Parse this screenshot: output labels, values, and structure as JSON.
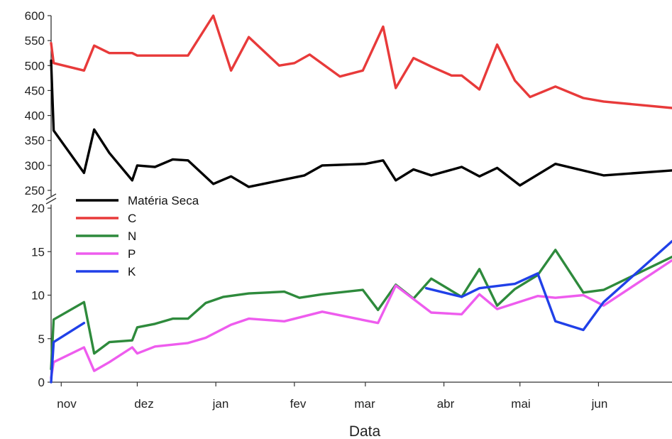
{
  "chart_data": {
    "type": "line",
    "title": "",
    "xlabel": "Data",
    "ylabel": "",
    "x_ticks": [
      "nov",
      "dez",
      "jan",
      "fev",
      "mar",
      "abr",
      "mai",
      "jun"
    ],
    "upper_panel": {
      "ylim": [
        250,
        600
      ],
      "y_ticks": [
        "600",
        "550",
        "500",
        "450",
        "400",
        "350",
        "300",
        "250"
      ]
    },
    "lower_panel": {
      "ylim": [
        0,
        20
      ],
      "y_ticks": [
        "20",
        "15",
        "10",
        "5",
        "0"
      ]
    },
    "axis_break": true,
    "grid": false,
    "legend_position": "top-left",
    "series": [
      {
        "name": "Matéria Seca",
        "color": "#000000",
        "panel": "upper",
        "x": [
          "2012-10-28",
          "2012-10-29",
          "2012-11-10",
          "2012-11-14",
          "2012-11-20",
          "2012-11-29",
          "2012-12-01",
          "2012-12-08",
          "2012-12-15",
          "2012-12-21",
          "2012-12-31",
          "2013-01-07",
          "2013-01-14",
          "2013-02-05",
          "2013-02-12",
          "2013-03-01",
          "2013-03-08",
          "2013-03-13",
          "2013-03-20",
          "2013-03-27",
          "2013-04-08",
          "2013-04-15",
          "2013-04-22",
          "2013-05-01",
          "2013-05-15",
          "2013-06-03",
          "2013-06-30"
        ],
        "y": [
          510,
          370,
          285,
          372,
          325,
          270,
          300,
          297,
          312,
          310,
          263,
          278,
          257,
          280,
          300,
          303,
          310,
          270,
          292,
          280,
          297,
          278,
          295,
          260,
          303,
          280,
          290
        ]
      },
      {
        "name": "C",
        "color": "#e83a3a",
        "panel": "upper",
        "x": [
          "2012-10-28",
          "2012-10-29",
          "2012-11-10",
          "2012-11-14",
          "2012-11-20",
          "2012-11-29",
          "2012-12-01",
          "2012-12-08",
          "2012-12-15",
          "2012-12-21",
          "2012-12-31",
          "2013-01-07",
          "2013-01-14",
          "2013-01-26",
          "2013-02-01",
          "2013-02-07",
          "2013-02-19",
          "2013-02-28",
          "2013-03-08",
          "2013-03-13",
          "2013-03-20",
          "2013-03-27",
          "2013-04-04",
          "2013-04-08",
          "2013-04-15",
          "2013-04-22",
          "2013-04-29",
          "2013-05-05",
          "2013-05-15",
          "2013-05-26",
          "2013-06-03",
          "2013-06-30"
        ],
        "y": [
          545,
          505,
          490,
          540,
          525,
          525,
          520,
          520,
          520,
          520,
          600,
          490,
          557,
          500,
          505,
          522,
          478,
          490,
          578,
          455,
          515,
          498,
          480,
          480,
          452,
          542,
          470,
          437,
          458,
          435,
          428,
          415
        ]
      },
      {
        "name": "N",
        "color": "#2e8a3c",
        "panel": "lower",
        "x": [
          "2012-10-28",
          "2012-10-29",
          "2012-11-10",
          "2012-11-14",
          "2012-11-20",
          "2012-11-29",
          "2012-12-01",
          "2012-12-08",
          "2012-12-15",
          "2012-12-21",
          "2012-12-28",
          "2013-01-04",
          "2013-01-14",
          "2013-01-28",
          "2013-02-03",
          "2013-02-12",
          "2013-02-28",
          "2013-03-06",
          "2013-03-13",
          "2013-03-20",
          "2013-03-27",
          "2013-04-08",
          "2013-04-15",
          "2013-04-22",
          "2013-04-29",
          "2013-05-08",
          "2013-05-15",
          "2013-05-26",
          "2013-06-03",
          "2013-06-30"
        ],
        "y": [
          1.5,
          7.2,
          9.2,
          3.3,
          4.6,
          4.8,
          6.3,
          6.7,
          7.3,
          7.3,
          9.1,
          9.8,
          10.2,
          10.4,
          9.7,
          10.1,
          10.6,
          8.3,
          11.2,
          9.6,
          11.9,
          9.8,
          13.0,
          8.8,
          10.7,
          12.3,
          15.2,
          10.3,
          10.6,
          14.4
        ]
      },
      {
        "name": "P",
        "color": "#ee5cee",
        "panel": "lower",
        "x": [
          "2012-10-28",
          "2012-10-29",
          "2012-11-10",
          "2012-11-14",
          "2012-11-20",
          "2012-11-29",
          "2012-12-01",
          "2012-12-08",
          "2012-12-21",
          "2012-12-28",
          "2013-01-07",
          "2013-01-14",
          "2013-01-28",
          "2013-02-12",
          "2013-03-06",
          "2013-03-13",
          "2013-03-27",
          "2013-04-08",
          "2013-04-15",
          "2013-04-22",
          "2013-05-08",
          "2013-05-15",
          "2013-05-26",
          "2013-06-03",
          "2013-06-30"
        ],
        "y": [
          0.5,
          2.3,
          4.0,
          1.3,
          2.3,
          4.0,
          3.3,
          4.1,
          4.5,
          5.1,
          6.6,
          7.3,
          7.0,
          8.1,
          6.8,
          11.1,
          8.0,
          7.8,
          10.1,
          8.4,
          9.9,
          9.7,
          10.0,
          8.8,
          14.0
        ]
      },
      {
        "name": "K",
        "color": "#2040e8",
        "panel": "lower",
        "x": [
          "2012-10-28",
          "2012-10-29",
          "2012-11-10",
          "2013-03-25",
          "2013-04-08",
          "2013-04-15",
          "2013-04-29",
          "2013-05-08",
          "2013-05-15",
          "2013-05-26",
          "2013-06-03",
          "2013-06-30"
        ],
        "y": [
          0.0,
          4.6,
          6.8,
          null,
          9.8,
          10.8,
          11.3,
          12.5,
          7.0,
          6.0,
          9.2,
          16.2
        ]
      },
      {
        "name": "",
        "color": "#2040e8",
        "panel": "lower",
        "x": [
          "2013-03-25",
          "2013-04-08"
        ],
        "y": [
          10.8,
          9.8
        ]
      }
    ]
  }
}
